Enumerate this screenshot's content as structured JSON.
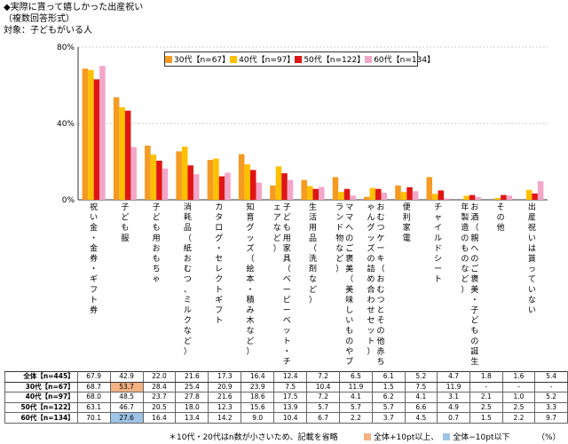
{
  "title_lines": [
    "◆実際に貰って嬉しかった出産祝い",
    "（複数回答形式）",
    "対象：子どもがいる人"
  ],
  "chart_data": {
    "type": "bar",
    "ylim": [
      0,
      80
    ],
    "yticks": [
      "80%",
      "40%",
      "0%"
    ],
    "ytick_values": [
      80,
      40,
      0
    ],
    "categories": [
      "祝い金・金券・ギフト券",
      "子ども服",
      "子ども用おもちゃ",
      "消耗品（紙おむつ、ミルクなど）",
      "カタログ・セレクトギフト",
      "知育グッズ（絵本・積み木など）",
      "子ども用家具（ベービーベット・チェアなど）",
      "生活用品（洗剤など）",
      "ママへのご褒美（美味しいものやブランド物など）",
      "おむつケーキ（おむつとその他赤ちゃんグッズの詰め合わせセット）",
      "便利家電",
      "チャイルドシート",
      "お酒（親へのご褒美・子どもの誕生年製造のものなど）",
      "その他",
      "出産祝いは貰っていない"
    ],
    "series": [
      {
        "name": "30代【n=67】",
        "color": "#f59a23",
        "values": [
          68.7,
          53.7,
          28.4,
          25.4,
          20.9,
          23.9,
          7.5,
          10.4,
          11.9,
          1.5,
          7.5,
          11.9,
          null,
          null,
          null
        ]
      },
      {
        "name": "40代【n=97】",
        "color": "#ffc000",
        "values": [
          68.0,
          48.5,
          23.7,
          27.8,
          21.6,
          18.6,
          17.5,
          7.2,
          4.1,
          6.2,
          4.1,
          3.1,
          2.1,
          1.0,
          5.2
        ]
      },
      {
        "name": "50代【n=122】",
        "color": "#e01515",
        "values": [
          63.1,
          46.7,
          20.5,
          18.0,
          12.3,
          15.6,
          13.9,
          5.7,
          5.7,
          5.7,
          6.6,
          4.9,
          2.5,
          2.5,
          3.3
        ]
      },
      {
        "name": "60代【n=134】",
        "color": "#f4a6c8",
        "values": [
          70.1,
          27.6,
          16.4,
          13.4,
          14.2,
          9.0,
          10.4,
          6.7,
          2.2,
          3.7,
          4.5,
          0.7,
          1.5,
          2.2,
          9.7
        ]
      }
    ]
  },
  "table": {
    "rows": [
      {
        "label": "全体【n=445】",
        "values": [
          "67.9",
          "42.9",
          "22.0",
          "21.6",
          "17.3",
          "16.4",
          "12.4",
          "7.2",
          "6.5",
          "6.1",
          "5.2",
          "4.7",
          "1.8",
          "1.6",
          "5.4"
        ]
      },
      {
        "label": "30代【n=67】",
        "values": [
          "68.7",
          "53.7",
          "28.4",
          "25.4",
          "20.9",
          "23.9",
          "7.5",
          "10.4",
          "11.9",
          "1.5",
          "7.5",
          "11.9",
          "-",
          "-",
          "-"
        ],
        "hi": [
          1
        ]
      },
      {
        "label": "40代【n=97】",
        "values": [
          "68.0",
          "48.5",
          "23.7",
          "27.8",
          "21.6",
          "18.6",
          "17.5",
          "7.2",
          "4.1",
          "6.2",
          "4.1",
          "3.1",
          "2.1",
          "1.0",
          "5.2"
        ]
      },
      {
        "label": "50代【n=122】",
        "values": [
          "63.1",
          "46.7",
          "20.5",
          "18.0",
          "12.3",
          "15.6",
          "13.9",
          "5.7",
          "5.7",
          "5.7",
          "6.6",
          "4.9",
          "2.5",
          "2.5",
          "3.3"
        ]
      },
      {
        "label": "60代【n=134】",
        "values": [
          "70.1",
          "27.6",
          "16.4",
          "13.4",
          "14.2",
          "9.0",
          "10.4",
          "6.7",
          "2.2",
          "3.7",
          "4.5",
          "0.7",
          "1.5",
          "2.2",
          "9.7"
        ],
        "lo": [
          1
        ]
      }
    ]
  },
  "footnote": {
    "note": "＊10代・20代はn数が小さいため、記載を省略",
    "hi_label": "全体+10pt以上、",
    "lo_label": "全体−10pt以下",
    "unit": "（%）",
    "hi_color": "#f4b183",
    "lo_color": "#9dc3e6"
  }
}
